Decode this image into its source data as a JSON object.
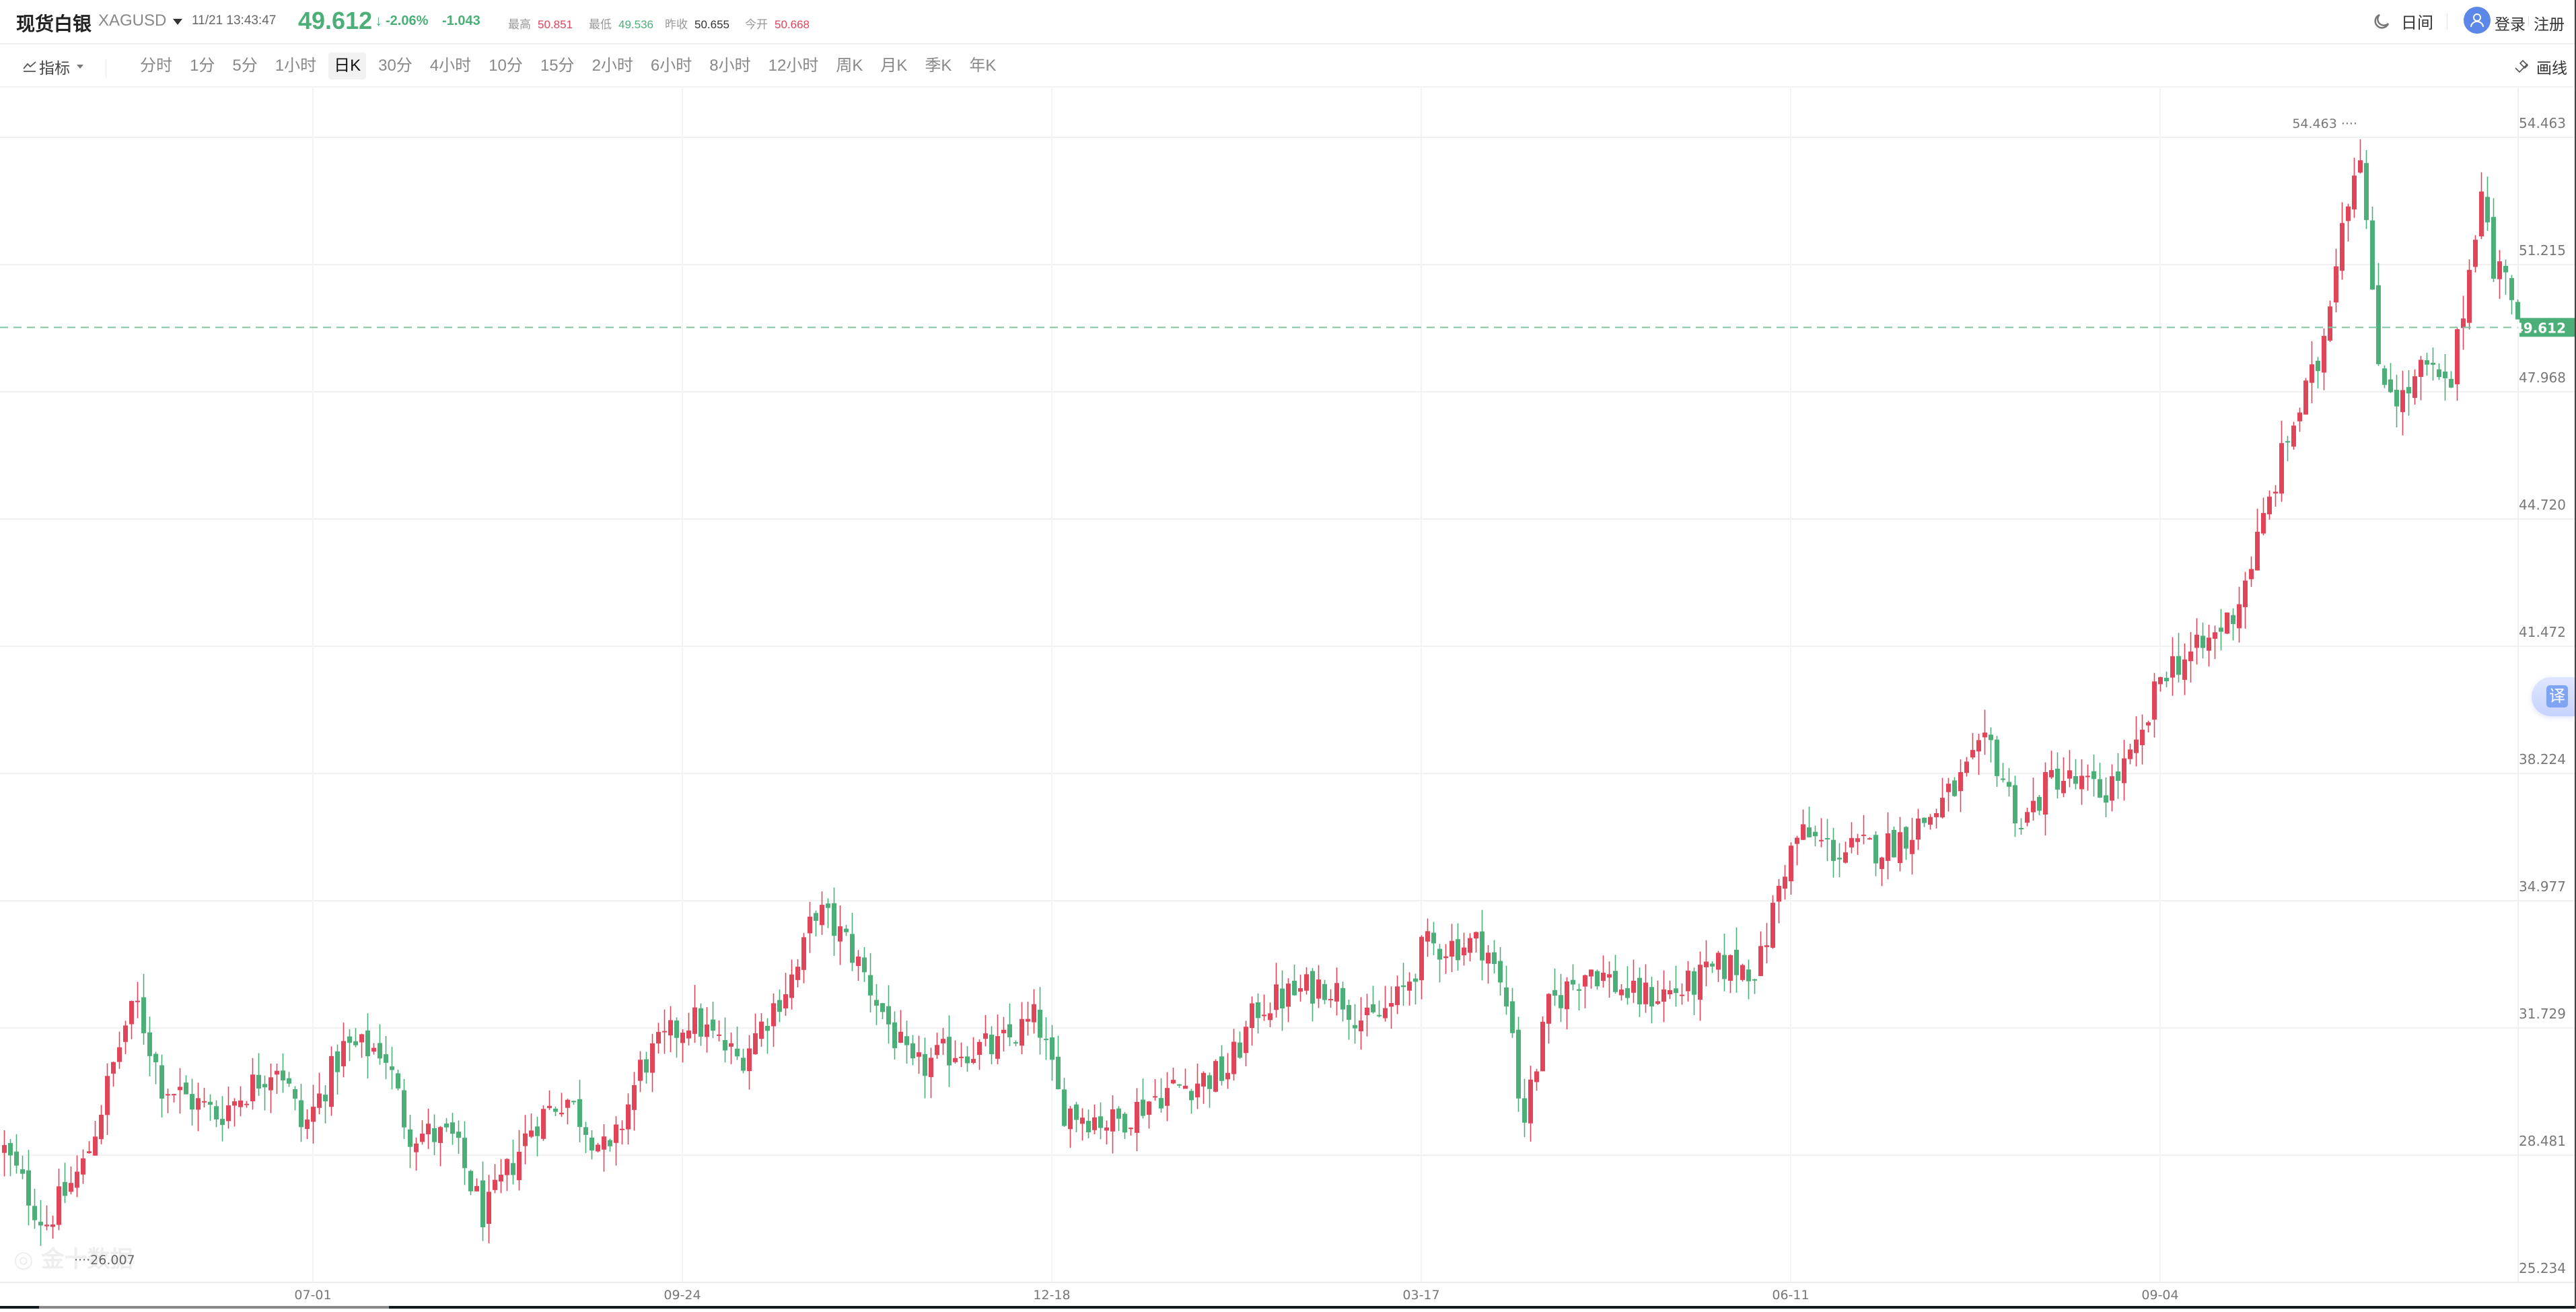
{
  "header": {
    "title": "现货白银",
    "symbol": "XAGUSD",
    "timestamp": "11/21 13:43:47",
    "price": "49.612",
    "price_arrow": "↓",
    "change_pct": "-2.06%",
    "change": "-1.043",
    "stats": [
      {
        "label": "最高",
        "value": "50.851",
        "tone": "up"
      },
      {
        "label": "最低",
        "value": "49.536",
        "tone": "dn"
      },
      {
        "label": "昨收",
        "value": "50.655",
        "tone": "neu"
      },
      {
        "label": "今开",
        "value": "50.668",
        "tone": "up"
      }
    ],
    "theme_label": "日间",
    "login_label": "登录",
    "register_label": "注册"
  },
  "toolbar": {
    "indicator_label": "指标",
    "periods": [
      "分时",
      "1分",
      "5分",
      "1小时",
      "日K",
      "30分",
      "4小时",
      "10分",
      "15分",
      "2小时",
      "6小时",
      "8小时",
      "12小时",
      "周K",
      "月K",
      "季K",
      "年K"
    ],
    "active_period": "日K",
    "draw_label": "画线"
  },
  "translate_label": "译",
  "watermark": "金十数据",
  "colors": {
    "up": "#e04559",
    "down": "#4caf78",
    "grid": "#f0f0f0",
    "axis_text": "#777777",
    "last_price_bg": "#4caf78"
  },
  "chart_data": {
    "type": "candlestick",
    "title": "现货白银 XAGUSD 日K",
    "xlabel": "",
    "ylabel": "",
    "ylim": [
      25.234,
      54.463
    ],
    "y_ticks": [
      "54.463",
      "51.215",
      "47.968",
      "44.720",
      "41.472",
      "38.224",
      "34.977",
      "31.729",
      "28.481",
      "25.234"
    ],
    "x_ticks": [
      {
        "label": "07-01",
        "index": 51
      },
      {
        "label": "09-24",
        "index": 112
      },
      {
        "label": "12-18",
        "index": 173
      },
      {
        "label": "03-17",
        "index": 234
      },
      {
        "label": "06-11",
        "index": 295
      },
      {
        "label": "09-04",
        "index": 356
      }
    ],
    "last_price": "49.612",
    "max_marker": {
      "label": "54.463",
      "index": 390
    },
    "min_marker": {
      "label": "26.007",
      "index": 10
    },
    "candle_count": 416,
    "close_anchors": [
      [
        0,
        28.6
      ],
      [
        10,
        26.7
      ],
      [
        20,
        28.3
      ],
      [
        30,
        31.8
      ],
      [
        33,
        32.3
      ],
      [
        39,
        30.3
      ],
      [
        53,
        29.5
      ],
      [
        68,
        30.9
      ],
      [
        74,
        29.1
      ],
      [
        84,
        31.2
      ],
      [
        94,
        31.2
      ],
      [
        100,
        29.1
      ],
      [
        111,
        28.9
      ],
      [
        119,
        26.9
      ],
      [
        131,
        29.3
      ],
      [
        139,
        30.0
      ],
      [
        150,
        28.4
      ],
      [
        158,
        30.8
      ],
      [
        170,
        32.0
      ],
      [
        182,
        30.9
      ],
      [
        197,
        33.3
      ],
      [
        201,
        34.8
      ],
      [
        209,
        33.9
      ],
      [
        215,
        32.7
      ],
      [
        225,
        30.6
      ],
      [
        236,
        31.2
      ],
      [
        246,
        31.2
      ],
      [
        256,
        32.0
      ],
      [
        262,
        29.7
      ],
      [
        275,
        29.3
      ],
      [
        287,
        30.1
      ],
      [
        303,
        30.6
      ],
      [
        311,
        32.3
      ],
      [
        328,
        32.9
      ],
      [
        338,
        31.8
      ],
      [
        346,
        32.5
      ],
      [
        352,
        33.8
      ],
      [
        367,
        33.9
      ],
      [
        374,
        31.8
      ],
      [
        376,
        29.1
      ],
      [
        383,
        32.3
      ],
      [
        393,
        33.3
      ],
      [
        404,
        32.5
      ],
      [
        416,
        32.7
      ],
      [
        426,
        33.3
      ],
      [
        435,
        33.3
      ],
      [
        441,
        35.8
      ],
      [
        445,
        36.7
      ],
      [
        455,
        36.2
      ],
      [
        467,
        36.4
      ],
      [
        477,
        37.1
      ],
      [
        484,
        37.9
      ],
      [
        492,
        39.0
      ],
      [
        500,
        36.9
      ],
      [
        508,
        38.2
      ],
      [
        520,
        37.7
      ],
      [
        529,
        38.8
      ],
      [
        535,
        40.9
      ],
      [
        545,
        41.4
      ],
      [
        553,
        42.4
      ],
      [
        559,
        44.3
      ],
      [
        566,
        46.8
      ],
      [
        574,
        48.8
      ],
      [
        579,
        52.2
      ],
      [
        584,
        54.3
      ],
      [
        588,
        48.8
      ],
      [
        594,
        47.7
      ],
      [
        600,
        48.6
      ],
      [
        606,
        47.9
      ],
      [
        611,
        51.1
      ],
      [
        614,
        53.4
      ],
      [
        617,
        50.9
      ],
      [
        620,
        51.3
      ],
      [
        623,
        49.612
      ]
    ]
  }
}
